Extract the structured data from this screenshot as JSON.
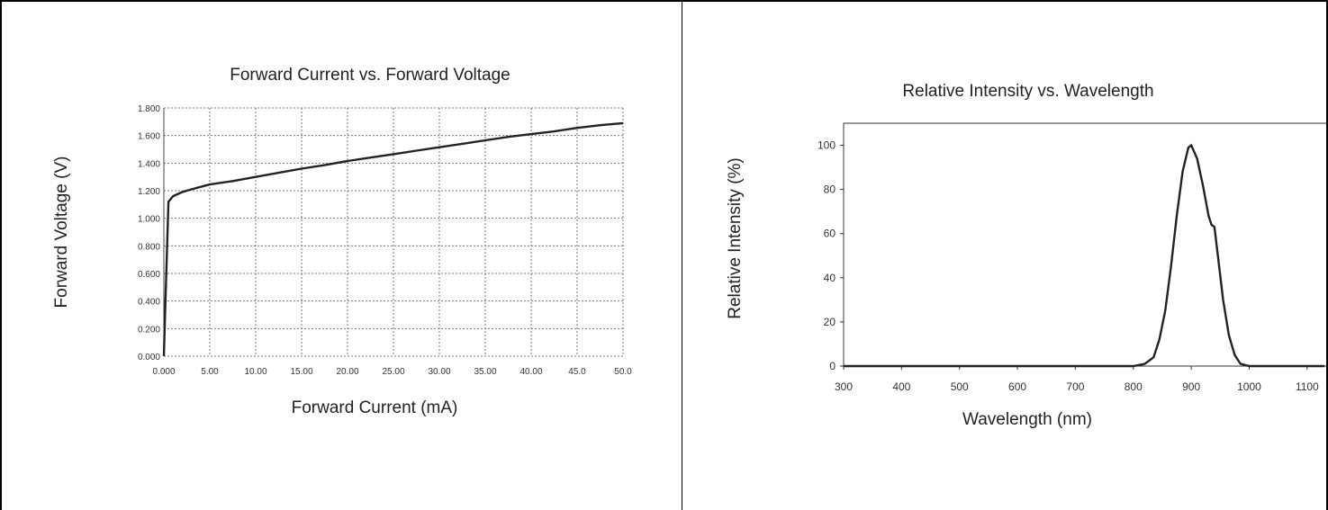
{
  "chart_data": [
    {
      "type": "line",
      "title": "Forward Current vs. Forward Voltage",
      "xlabel": "Forward Current (mA)",
      "ylabel": "Forward Voltage (V)",
      "xlim": [
        0,
        50
      ],
      "ylim": [
        0,
        1.8
      ],
      "grid": true,
      "x_ticks": [
        "0.000",
        "5.00",
        "10.00",
        "15.00",
        "20.00",
        "25.00",
        "30.00",
        "35.00",
        "40.00",
        "45.0",
        "50.0"
      ],
      "y_ticks": [
        "0.000",
        "0.200",
        "0.400",
        "0.600",
        "0.800",
        "1.000",
        "1.200",
        "1.400",
        "1.600",
        "1.800"
      ],
      "series": [
        {
          "x": [
            0.0,
            0.2,
            0.5,
            1.0,
            2.0,
            3.0,
            5.0,
            7.5,
            10.0,
            12.5,
            15.0,
            17.5,
            20.0,
            22.5,
            25.0,
            27.5,
            30.0,
            32.5,
            35.0,
            37.5,
            40.0,
            42.5,
            45.0,
            47.5,
            50.0
          ],
          "y": [
            0.0,
            0.45,
            1.12,
            1.16,
            1.19,
            1.21,
            1.245,
            1.27,
            1.3,
            1.33,
            1.36,
            1.385,
            1.415,
            1.44,
            1.465,
            1.49,
            1.515,
            1.54,
            1.565,
            1.59,
            1.61,
            1.63,
            1.655,
            1.675,
            1.69
          ]
        }
      ]
    },
    {
      "type": "line",
      "title": "Relative Intensity vs. Wavelength",
      "xlabel": "Wavelength (nm)",
      "ylabel": "Relative Intensity  (%)",
      "xlim": [
        300,
        1150
      ],
      "ylim": [
        0,
        110
      ],
      "grid": false,
      "x_ticks": [
        "300",
        "400",
        "500",
        "600",
        "700",
        "800",
        "900",
        "1000",
        "1100"
      ],
      "y_ticks": [
        "0",
        "20",
        "40",
        "60",
        "80",
        "100"
      ],
      "series": [
        {
          "x": [
            300,
            800,
            820,
            835,
            845,
            855,
            865,
            875,
            885,
            895,
            900,
            910,
            920,
            930,
            935,
            940,
            945,
            955,
            965,
            975,
            985,
            1000,
            1010,
            1130
          ],
          "y": [
            0,
            0,
            1,
            4,
            12,
            25,
            45,
            68,
            88,
            99,
            100,
            94,
            82,
            68,
            64,
            63,
            52,
            30,
            14,
            5,
            1,
            0,
            0,
            0
          ]
        }
      ]
    }
  ]
}
